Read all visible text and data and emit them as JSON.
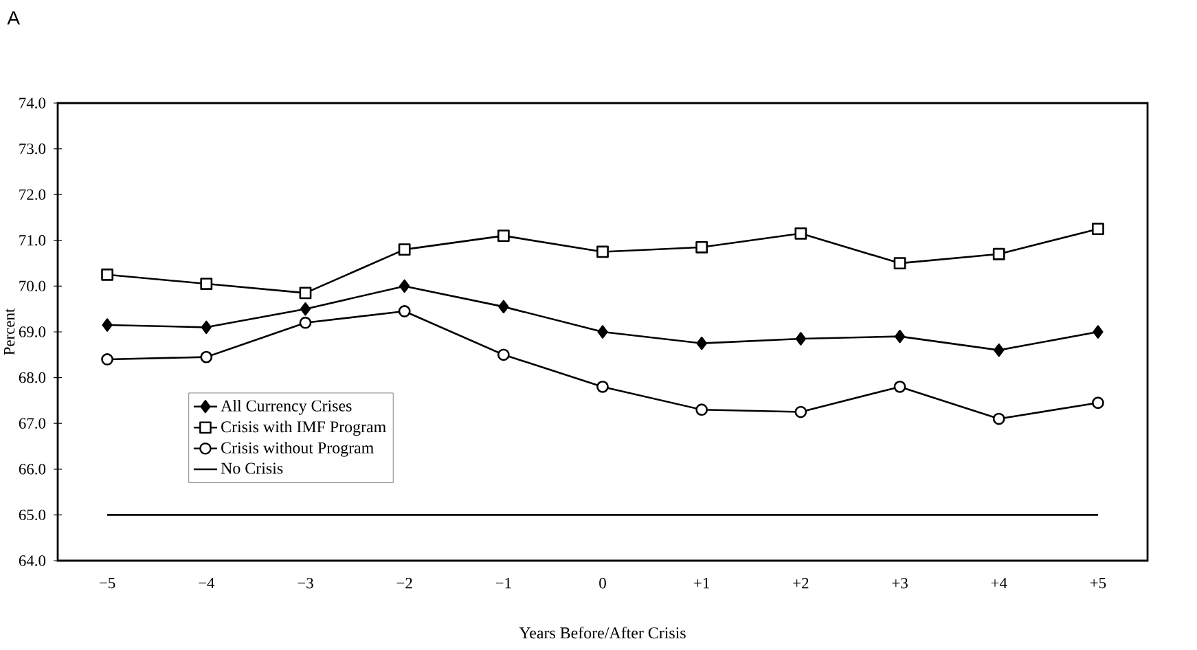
{
  "chart_data": {
    "type": "line",
    "title": "A",
    "xlabel": "Years Before/After Crisis",
    "ylabel": "Percent",
    "categories": [
      "−5",
      "−4",
      "−3",
      "−2",
      "−1",
      "0",
      "+1",
      "+2",
      "+3",
      "+4",
      "+5"
    ],
    "series": [
      {
        "name": "All Currency Crises",
        "color": "#000000",
        "marker": "diamond",
        "values": [
          69.15,
          69.1,
          69.5,
          70.0,
          69.55,
          69.0,
          68.75,
          68.85,
          68.9,
          68.6,
          69.0
        ]
      },
      {
        "name": "Crisis with IMF Program",
        "color": "#000000",
        "marker": "square",
        "values": [
          70.25,
          70.05,
          69.85,
          70.8,
          71.1,
          70.75,
          70.85,
          71.15,
          70.5,
          70.7,
          71.25
        ]
      },
      {
        "name": "Crisis without Program",
        "color": "#000000",
        "marker": "circle",
        "values": [
          68.4,
          68.45,
          69.2,
          69.45,
          68.5,
          67.8,
          67.3,
          67.25,
          67.8,
          67.1,
          67.45
        ]
      },
      {
        "name": "No Crisis",
        "color": "#000000",
        "marker": "none",
        "values": [
          65,
          65,
          65,
          65,
          65,
          65,
          65,
          65,
          65,
          65,
          65
        ]
      }
    ],
    "ylim": [
      64,
      74
    ],
    "yticks": [
      {
        "value": 64,
        "label": "64.0"
      },
      {
        "value": 65,
        "label": "65.0"
      },
      {
        "value": 66,
        "label": "66.0"
      },
      {
        "value": 67,
        "label": "67.0"
      },
      {
        "value": 68,
        "label": "68.0"
      },
      {
        "value": 69,
        "label": "69.0"
      },
      {
        "value": 70,
        "label": "70.0"
      },
      {
        "value": 71,
        "label": "71.0"
      },
      {
        "value": 72,
        "label": "72.0"
      },
      {
        "value": 73,
        "label": "73.0"
      },
      {
        "value": 74,
        "label": "74.0"
      }
    ],
    "legend": "bottom left",
    "grid": false,
    "line_style": "solid"
  }
}
